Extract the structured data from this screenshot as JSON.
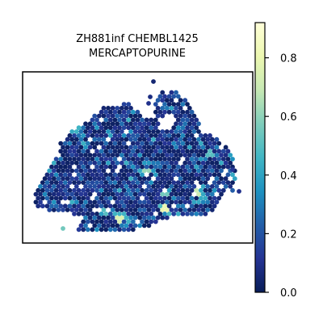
{
  "chart_data": {
    "type": "scatter",
    "title": "ZH881inf CHEMBL1425\nMERCAPTOPURINE",
    "title_lines": [
      "ZH881inf CHEMBL1425",
      "MERCAPTOPURINE"
    ],
    "xlabel": "",
    "ylabel": "",
    "grid": false,
    "legend": "none",
    "colorbar": {
      "position": "right",
      "range": [
        0.0,
        0.92
      ],
      "ticks": [
        0.0,
        0.2,
        0.4,
        0.6,
        0.8
      ],
      "tick_labels": [
        "0.0",
        "0.2",
        "0.4",
        "0.6",
        "0.8"
      ],
      "colormap": "YlGnBu",
      "colors": [
        "#081d58",
        "#253494",
        "#225ea8",
        "#1d91c0",
        "#41b6c4",
        "#7fcdbb",
        "#c7e9b4",
        "#edf8b1",
        "#ffffd9"
      ]
    },
    "value_distribution": {
      "typical_range": [
        0.0,
        0.3
      ],
      "high_value_spots": [
        {
          "region": "center-bottom",
          "value": 0.8
        },
        {
          "region": "lower-center-left",
          "value": 0.75
        },
        {
          "region": "right-center",
          "value": 0.7
        },
        {
          "region": "bottom-left-outlier",
          "value": 0.55
        },
        {
          "region": "center-right",
          "value": 0.6
        }
      ]
    },
    "notes": "Spatial hexagonal spot map; individual spot values not labeled."
  }
}
